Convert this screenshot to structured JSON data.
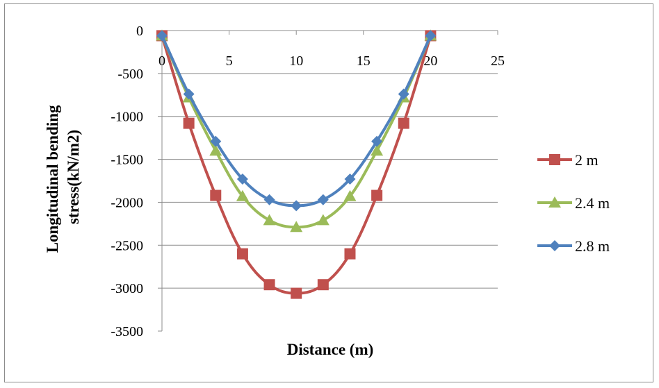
{
  "chart_data": {
    "type": "line",
    "title": "",
    "xlabel": "Distance (m)",
    "ylabel_lines": [
      "Longitudinal bending",
      "stress(kN/m2)"
    ],
    "xlim": [
      0,
      25
    ],
    "ylim": [
      -3500,
      0
    ],
    "x_ticks": [
      0,
      5,
      10,
      15,
      20,
      25
    ],
    "y_ticks": [
      0,
      -500,
      -1000,
      -1500,
      -2000,
      -2500,
      -3000,
      -3500
    ],
    "grid": "horizontal",
    "legend_position": "right",
    "x": [
      0,
      2,
      4,
      6,
      8,
      10,
      12,
      14,
      16,
      18,
      20
    ],
    "series": [
      {
        "name": "2 m",
        "color": "#C0504D",
        "marker": "square",
        "values": [
          -60,
          -1080,
          -1920,
          -2600,
          -2960,
          -3060,
          -2960,
          -2600,
          -1920,
          -1080,
          -60
        ]
      },
      {
        "name": "2.4 m",
        "color": "#9BBB59",
        "marker": "triangle",
        "values": [
          -60,
          -780,
          -1400,
          -1930,
          -2210,
          -2290,
          -2210,
          -1930,
          -1400,
          -780,
          -60
        ]
      },
      {
        "name": "2.8 m",
        "color": "#4F81BD",
        "marker": "diamond",
        "values": [
          -60,
          -740,
          -1290,
          -1730,
          -1970,
          -2040,
          -1970,
          -1730,
          -1290,
          -740,
          -60
        ]
      }
    ]
  }
}
